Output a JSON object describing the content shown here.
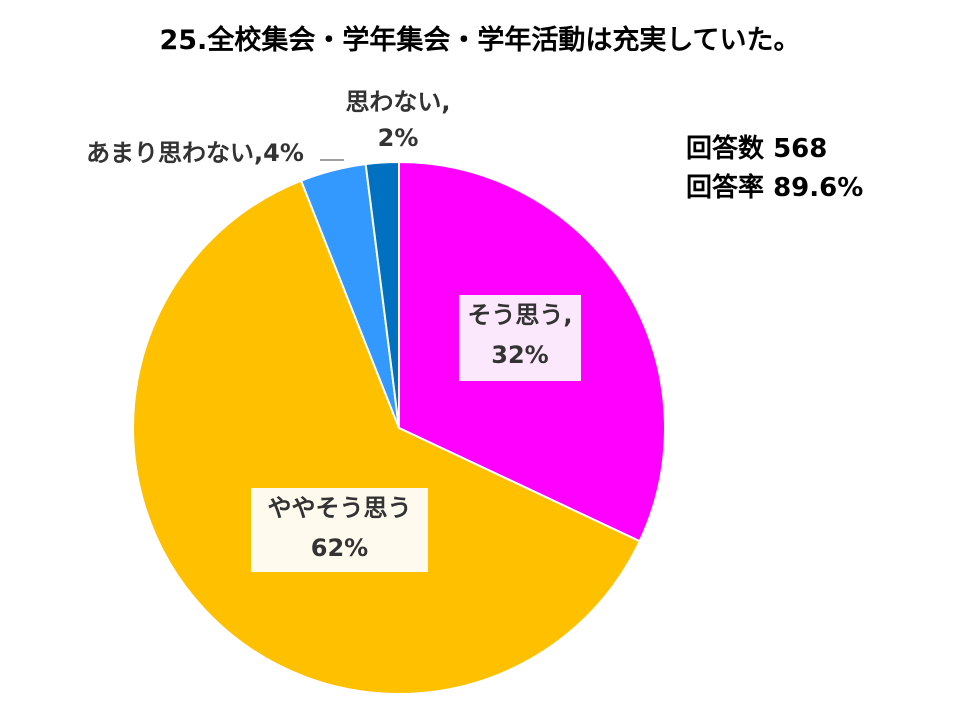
{
  "title": "25.全校集会・学年集会・学年活動は充実していた。",
  "stats": {
    "responses_label": "回答数",
    "responses_value": "568",
    "rate_label": "回答率",
    "rate_value": "89.6%"
  },
  "labels": {
    "agree_name": "そう思う,",
    "agree_pct": "32%",
    "somewhat_name": "ややそう思う",
    "somewhat_pct": "62%",
    "notmuch": "あまり思わない,4%",
    "disagree_name": "思わない,",
    "disagree_pct": "2%"
  },
  "chart_data": {
    "type": "pie",
    "title": "25.全校集会・学年集会・学年活動は充実していた。",
    "start": "12 o'clock",
    "direction": "clockwise",
    "slices": [
      {
        "label": "そう思う",
        "value": 32,
        "color": "#FF00FF"
      },
      {
        "label": "ややそう思う",
        "value": 62,
        "color": "#FFC000"
      },
      {
        "label": "あまり思わない",
        "value": 4,
        "color": "#3399FF"
      },
      {
        "label": "思わない",
        "value": 2,
        "color": "#0070C0"
      }
    ]
  }
}
